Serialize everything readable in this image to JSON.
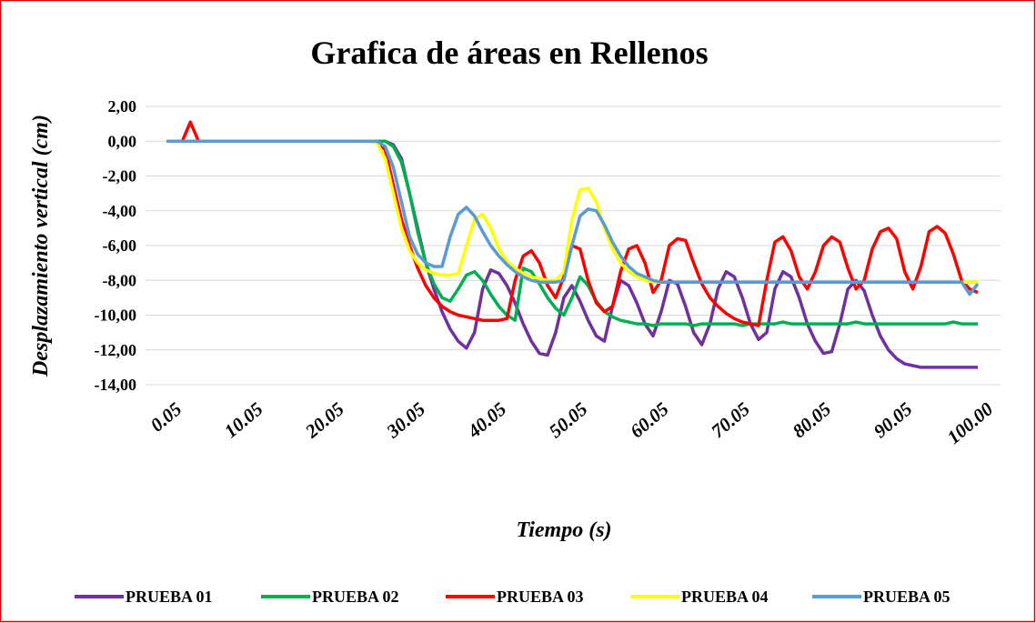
{
  "chart_data": {
    "type": "line",
    "title": "Grafica de áreas en Rellenos",
    "xlabel": "Tiempo (s)",
    "ylabel": "Desplazamiento vertical (cm)",
    "x": [
      0.05,
      1,
      2,
      3,
      4,
      5,
      6,
      7,
      8,
      9,
      10,
      11,
      12,
      13,
      14,
      15,
      16,
      17,
      18,
      19,
      20,
      21,
      22,
      23,
      24,
      25,
      26,
      27,
      28,
      29,
      30,
      31,
      32,
      33,
      34,
      35,
      36,
      37,
      38,
      39,
      40,
      41,
      42,
      43,
      44,
      45,
      46,
      47,
      48,
      49,
      50,
      51,
      52,
      53,
      54,
      55,
      56,
      57,
      58,
      59,
      60,
      61,
      62,
      63,
      64,
      65,
      66,
      67,
      68,
      69,
      70,
      71,
      72,
      73,
      74,
      75,
      76,
      77,
      78,
      79,
      80,
      81,
      82,
      83,
      84,
      85,
      86,
      87,
      88,
      89,
      90,
      91,
      92,
      93,
      94,
      95,
      96,
      97,
      98,
      99,
      100
    ],
    "xlim": [
      0.05,
      100
    ],
    "xticks": [
      0.05,
      10.05,
      20.05,
      30.05,
      40.05,
      50.05,
      60.05,
      70.05,
      80.05,
      90.05,
      {
        "value": 100,
        "label": "100.00"
      }
    ],
    "ylim": [
      -14,
      2
    ],
    "yticks": [
      {
        "value": 2,
        "label": "2,00"
      },
      {
        "value": 0,
        "label": "0,00"
      },
      {
        "value": -2,
        "label": "-2,00"
      },
      {
        "value": -4,
        "label": "-4,00"
      },
      {
        "value": -6,
        "label": "-6,00"
      },
      {
        "value": -8,
        "label": "-8,00"
      },
      {
        "value": -10,
        "label": "-10,00"
      },
      {
        "value": -12,
        "label": "-12,00"
      },
      {
        "value": -14,
        "label": "-14,00"
      }
    ],
    "grid": true,
    "legend": "bottom",
    "series": [
      {
        "name": "PRUEBA 01",
        "color": "#7030a0",
        "values": [
          0,
          0,
          0,
          0,
          0,
          0,
          0,
          0,
          0,
          0,
          0,
          0,
          0,
          0,
          0,
          0,
          0,
          0,
          0,
          0,
          0,
          0,
          0,
          0,
          0,
          0,
          0,
          0,
          -0.2,
          -1,
          -3,
          -5,
          -7,
          -8.5,
          -9.8,
          -10.8,
          -11.5,
          -11.9,
          -11,
          -8.5,
          -7.4,
          -7.6,
          -8.3,
          -9.3,
          -10.5,
          -11.5,
          -12.2,
          -12.3,
          -11,
          -9,
          -8.3,
          -9.2,
          -10.3,
          -11.2,
          -11.5,
          -9.5,
          -8,
          -8.3,
          -9.3,
          -10.5,
          -11.2,
          -9.8,
          -8,
          -8.2,
          -9.5,
          -11,
          -11.7,
          -10.5,
          -8.5,
          -7.5,
          -7.8,
          -9,
          -10.5,
          -11.4,
          -11,
          -8.5,
          -7.5,
          -7.8,
          -9,
          -10.5,
          -11.5,
          -12.2,
          -12.1,
          -10.5,
          -8.5,
          -8,
          -8.6,
          -10,
          -11.2,
          -12,
          -12.5,
          -12.8,
          -12.9,
          -13,
          -13,
          -13,
          -13,
          -13,
          -13,
          -13,
          -13
        ]
      },
      {
        "name": "PRUEBA 02",
        "color": "#00b050",
        "values": [
          0,
          0,
          0,
          0,
          0,
          0,
          0,
          0,
          0,
          0,
          0,
          0,
          0,
          0,
          0,
          0,
          0,
          0,
          0,
          0,
          0,
          0,
          0,
          0,
          0,
          0,
          0,
          0,
          -0.3,
          -1.2,
          -3,
          -5.2,
          -7,
          -8.2,
          -9,
          -9.2,
          -8.5,
          -7.7,
          -7.5,
          -8,
          -8.8,
          -9.5,
          -10,
          -10.3,
          -7.3,
          -7.5,
          -8.2,
          -9,
          -9.6,
          -10,
          -9,
          -7.8,
          -8.3,
          -9.2,
          -9.8,
          -10.1,
          -10.3,
          -10.4,
          -10.5,
          -10.5,
          -10.6,
          -10.5,
          -10.5,
          -10.5,
          -10.5,
          -10.6,
          -10.5,
          -10.5,
          -10.5,
          -10.5,
          -10.5,
          -10.6,
          -10.5,
          -10.5,
          -10.5,
          -10.5,
          -10.4,
          -10.5,
          -10.5,
          -10.5,
          -10.5,
          -10.5,
          -10.5,
          -10.5,
          -10.5,
          -10.4,
          -10.5,
          -10.5,
          -10.5,
          -10.5,
          -10.5,
          -10.5,
          -10.5,
          -10.5,
          -10.5,
          -10.5,
          -10.5,
          -10.4,
          -10.5,
          -10.5,
          -10.5
        ]
      },
      {
        "name": "PRUEBA 03",
        "color": "#ff0000",
        "values": [
          0,
          0,
          0,
          1.1,
          0,
          0,
          0,
          0,
          0,
          0,
          0,
          0,
          0,
          0,
          0,
          0,
          0,
          0,
          0,
          0,
          0,
          0,
          0,
          0,
          0,
          0,
          0,
          -0.5,
          -2.5,
          -4.5,
          -6,
          -7.3,
          -8.3,
          -9,
          -9.5,
          -9.8,
          -10,
          -10.1,
          -10.2,
          -10.3,
          -10.3,
          -10.3,
          -10.2,
          -8,
          -6.6,
          -6.3,
          -7,
          -8.3,
          -9,
          -7.8,
          -6,
          -6.2,
          -8,
          -9.3,
          -9.8,
          -9.5,
          -7.5,
          -6.2,
          -6,
          -7,
          -8.7,
          -8,
          -6,
          -5.6,
          -5.7,
          -7,
          -8.2,
          -9,
          -9.5,
          -9.9,
          -10.2,
          -10.4,
          -10.5,
          -10.6,
          -8,
          -5.8,
          -5.5,
          -6.3,
          -7.8,
          -8.5,
          -7.5,
          -6,
          -5.5,
          -5.8,
          -7.3,
          -8.5,
          -8,
          -6.2,
          -5.2,
          -5,
          -5.6,
          -7.5,
          -8.5,
          -7.2,
          -5.2,
          -4.9,
          -5.3,
          -6.5,
          -8,
          -8.5,
          -8.7
        ]
      },
      {
        "name": "PRUEBA 04",
        "color": "#ffff00",
        "values": [
          0,
          0,
          0,
          0,
          0,
          0,
          0,
          0,
          0,
          0,
          0,
          0,
          0,
          0,
          0,
          0,
          0,
          0,
          0,
          0,
          0,
          0,
          0,
          0,
          0,
          0,
          -0.1,
          -1,
          -3,
          -5,
          -6.3,
          -7,
          -7.4,
          -7.6,
          -7.7,
          -7.7,
          -7.6,
          -6,
          -4.5,
          -4.2,
          -5,
          -6.2,
          -6.9,
          -7.3,
          -7.6,
          -7.8,
          -7.9,
          -8,
          -8,
          -7.5,
          -4.5,
          -2.8,
          -2.7,
          -3.5,
          -5,
          -6.2,
          -7,
          -7.5,
          -7.8,
          -8,
          -8.1,
          -8.1,
          -8.1,
          -8.1,
          -8.1,
          -8.1,
          -8.1,
          -8.1,
          -8.1,
          -8.1,
          -8.1,
          -8.1,
          -8.1,
          -8.1,
          -8.1,
          -8.1,
          -8.1,
          -8.1,
          -8.1,
          -8.1,
          -8.1,
          -8.1,
          -8.1,
          -8.1,
          -8.1,
          -8.1,
          -8.1,
          -8.1,
          -8.1,
          -8.1,
          -8.1,
          -8.1,
          -8.1,
          -8.1,
          -8.1,
          -8.1,
          -8.1,
          -8.1,
          -8.1,
          -8.1,
          -8.1
        ]
      },
      {
        "name": "PRUEBA 05",
        "color": "#5b9bd5",
        "values": [
          0,
          0,
          0,
          0,
          0,
          0,
          0,
          0,
          0,
          0,
          0,
          0,
          0,
          0,
          0,
          0,
          0,
          0,
          0,
          0,
          0,
          0,
          0,
          0,
          0,
          0,
          0,
          -0.3,
          -1.5,
          -3.5,
          -5.5,
          -6.5,
          -7,
          -7.2,
          -7.2,
          -5.5,
          -4.2,
          -3.8,
          -4.3,
          -5.2,
          -6,
          -6.6,
          -7.1,
          -7.5,
          -7.8,
          -8,
          -8.1,
          -8.1,
          -8.1,
          -8,
          -6,
          -4.3,
          -3.9,
          -4,
          -4.8,
          -5.8,
          -6.6,
          -7.2,
          -7.6,
          -7.8,
          -8,
          -8.1,
          -8.1,
          -8.1,
          -8.1,
          -8.1,
          -8.1,
          -8.1,
          -8.1,
          -8.1,
          -8.1,
          -8.1,
          -8.1,
          -8.1,
          -8.1,
          -8.1,
          -8.1,
          -8.1,
          -8.1,
          -8.1,
          -8.1,
          -8.1,
          -8.1,
          -8.1,
          -8.1,
          -8.1,
          -8.1,
          -8.1,
          -8.1,
          -8.1,
          -8.1,
          -8.1,
          -8.1,
          -8.1,
          -8.1,
          -8.1,
          -8.1,
          -8.1,
          -8.1,
          -8.8,
          -8.2
        ]
      }
    ]
  }
}
